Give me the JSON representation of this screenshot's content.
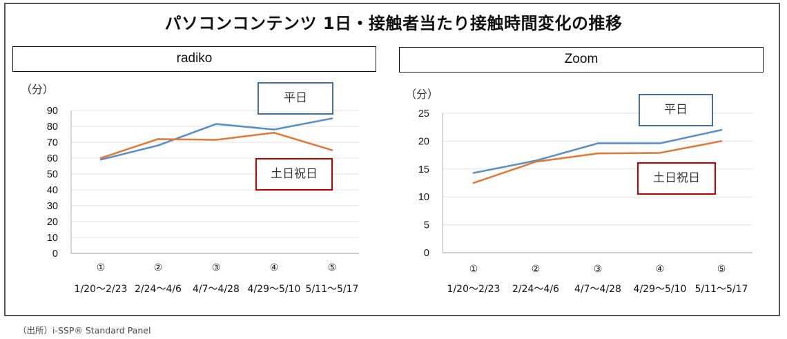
{
  "title": "パソコンコンテンツ 1日・接触者当たり接触時間変化の推移",
  "footer": "（出所）i-SSP® Standard Panel",
  "colors": {
    "weekday": "#5b8fc7",
    "holiday": "#e07b39",
    "weekday_box": "#41719c",
    "holiday_box": "#c00000",
    "grid": "#e3e3e3",
    "axis": "#b0b0b0"
  },
  "chart_data": [
    {
      "type": "line",
      "title": "radiko",
      "ylabel": "（分）",
      "xlabel": "",
      "ylim": [
        0,
        90
      ],
      "yticks": [
        0,
        10,
        20,
        30,
        40,
        50,
        60,
        70,
        80,
        90
      ],
      "grid": true,
      "categories": [
        "①",
        "②",
        "③",
        "④",
        "⑤"
      ],
      "category_dates": [
        "1/20〜2/23",
        "2/24〜4/6",
        "4/7〜4/28",
        "4/29〜5/10",
        "5/11〜5/17"
      ],
      "series": [
        {
          "name": "平日",
          "color": "#5b8fc7",
          "values": [
            59,
            68,
            81.5,
            78,
            85
          ]
        },
        {
          "name": "土日祝日",
          "color": "#e07b39",
          "values": [
            60,
            72,
            71.5,
            76,
            65
          ]
        }
      ],
      "legend": [
        {
          "label": "平日",
          "placement": "top-right"
        },
        {
          "label": "土日祝日",
          "placement": "center-right"
        }
      ]
    },
    {
      "type": "line",
      "title": "Zoom",
      "ylabel": "（分）",
      "xlabel": "",
      "ylim": [
        0,
        25
      ],
      "yticks": [
        0,
        5,
        10,
        15,
        20,
        25
      ],
      "grid": true,
      "categories": [
        "①",
        "②",
        "③",
        "④",
        "⑤"
      ],
      "category_dates": [
        "1/20〜2/23",
        "2/24〜4/6",
        "4/7〜4/28",
        "4/29〜5/10",
        "5/11〜5/17"
      ],
      "series": [
        {
          "name": "平日",
          "color": "#5b8fc7",
          "values": [
            14.3,
            16.5,
            19.6,
            19.6,
            22
          ]
        },
        {
          "name": "土日祝日",
          "color": "#e07b39",
          "values": [
            12.5,
            16.3,
            17.8,
            17.9,
            20
          ]
        }
      ],
      "legend": [
        {
          "label": "平日",
          "placement": "top-right"
        },
        {
          "label": "土日祝日",
          "placement": "center-right"
        }
      ]
    }
  ]
}
